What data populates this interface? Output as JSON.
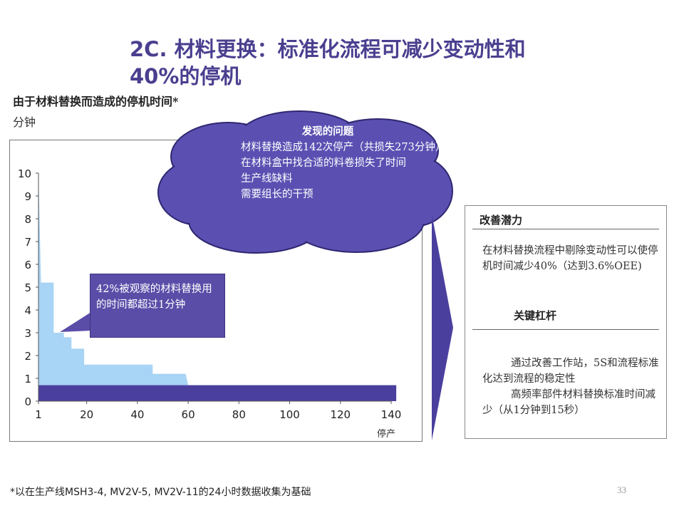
{
  "title": {
    "line1": "2C. 材料更换：标准化流程可减少变动性和",
    "line2": "40%的停机"
  },
  "subtitle": "由于材料替换而造成的停机时间*",
  "unit": "分钟",
  "cloud": {
    "heading": "发现的问题",
    "items": [
      "材料替换造成142次停产（共损失273分钟）",
      "在材料盒中找合适的料卷损失了时间",
      "生产线缺料",
      "需要组长的干预"
    ]
  },
  "callout": "42%被观察的材料替换用的时间都超过1分钟",
  "panel": {
    "heading1": "改善潜力",
    "text1": "在材料替换流程中剔除变动性可以使停机时间减少40%（达到3.6%OEE)",
    "heading2": "关键杠杆",
    "items": [
      "通过改善工作站，5S和流程标准化达到流程的稳定性",
      "高频率部件材料替换标准时间减少（从1分钟到15秒）"
    ]
  },
  "footnote": "*以在生产线MSH3-4, MV2V-5, MV2V-11的24小时数据收集为基础",
  "page_number": "33",
  "colors": {
    "title": "#4a3f8f",
    "bar_light": "#a8d4f5",
    "bar_dark": "#4b3f9e",
    "cloud": "#5b50b2",
    "callout": "#5a4da8"
  },
  "chart_data": {
    "type": "area",
    "title": "由于材料替换而造成的停机时间*",
    "ylabel": "分钟",
    "xlabel": "停产",
    "xlim": [
      1,
      140
    ],
    "ylim": [
      0,
      10
    ],
    "x_ticks": [
      1,
      20,
      40,
      60,
      80,
      100,
      120,
      140
    ],
    "y_ticks": [
      0,
      1,
      2,
      3,
      4,
      5,
      6,
      7,
      8,
      9,
      10
    ],
    "series": [
      {
        "color": "#a8d4f5",
        "points": [
          [
            1,
            10
          ],
          [
            2,
            5.2
          ],
          [
            7,
            5.2
          ],
          [
            7,
            3
          ],
          [
            11,
            3
          ],
          [
            11,
            2.8
          ],
          [
            14,
            2.8
          ],
          [
            14,
            2.3
          ],
          [
            19,
            2.3
          ],
          [
            19,
            1.6
          ],
          [
            46,
            1.6
          ],
          [
            46,
            1.2
          ],
          [
            59,
            1.2
          ],
          [
            60,
            0.7
          ],
          [
            142,
            0.7
          ]
        ]
      },
      {
        "color": "#4b3f9e",
        "points": [
          [
            1,
            0.7
          ],
          [
            142,
            0.7
          ]
        ]
      }
    ]
  }
}
